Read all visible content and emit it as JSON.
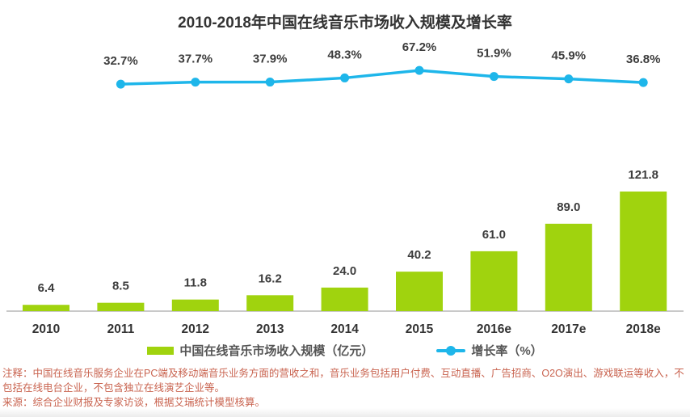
{
  "title": "2010-2018年中国在线音乐市场收入规模及增长率",
  "chart_data": {
    "type": "bar+line",
    "categories": [
      "2010",
      "2011",
      "2012",
      "2013",
      "2014",
      "2015",
      "2016e",
      "2017e",
      "2018e"
    ],
    "series": [
      {
        "name": "中国在线音乐市场收入规模（亿元）",
        "type": "bar",
        "color": "#a0d30e",
        "values": [
          6.4,
          8.5,
          11.8,
          16.2,
          24.0,
          40.2,
          61.0,
          89.0,
          121.8
        ],
        "labels": [
          "6.4",
          "8.5",
          "11.8",
          "16.2",
          "24.0",
          "40.2",
          "61.0",
          "89.0",
          "121.8"
        ]
      },
      {
        "name": "增长率（%）",
        "type": "line",
        "color": "#1eb6ea",
        "values": [
          null,
          32.7,
          37.7,
          37.9,
          48.3,
          67.2,
          51.9,
          45.9,
          36.8
        ],
        "labels": [
          null,
          "32.7%",
          "37.7%",
          "37.9%",
          "48.3%",
          "67.2%",
          "51.9%",
          "45.9%",
          "36.8%"
        ]
      }
    ],
    "xlabel": "",
    "ylabel": "",
    "grid": false,
    "legend_position": "bottom",
    "axis_color": "#c9c9c9",
    "label_text_color": "#3d3d3d",
    "title_color": "#333333"
  },
  "notes": {
    "annotation": "注释：中国在线音乐服务企业在PC端及移动端音乐业务方面的营收之和，音乐业务包括用户付费、互动直播、广告招商、O2O演出、游戏联运等收入，不包括在线电台企业，不包含独立在线演艺企业等。",
    "source": "来源：综合企业财报及专家访谈，根据艾瑞统计模型核算。",
    "color": "#c96450"
  }
}
